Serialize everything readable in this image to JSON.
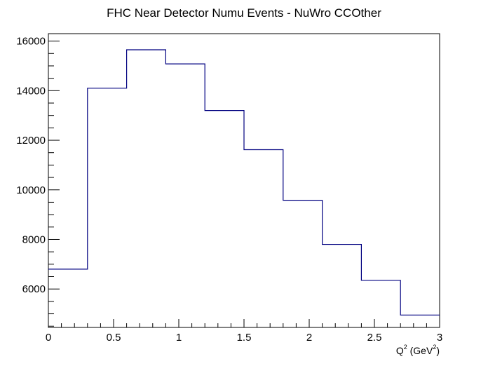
{
  "chart_data": {
    "type": "histogram",
    "title": "FHC Near Detector Numu Events - NuWro CCOther",
    "xlabel": {
      "base": "Q",
      "sup": "2",
      "unit_open": " (GeV",
      "unit_sup": "2",
      "unit_close": ")"
    },
    "ylabel": "",
    "xlim": [
      0,
      3
    ],
    "ylim": [
      4450,
      16300
    ],
    "x_ticks": [
      0,
      0.5,
      1,
      1.5,
      2,
      2.5,
      3
    ],
    "x_tick_labels": [
      "0",
      "0.5",
      "1",
      "1.5",
      "2",
      "2.5",
      "3"
    ],
    "y_ticks": [
      6000,
      8000,
      10000,
      12000,
      14000,
      16000
    ],
    "y_tick_labels": [
      "6000",
      "8000",
      "10000",
      "12000",
      "14000",
      "16000"
    ],
    "bin_edges": [
      0,
      0.3,
      0.6,
      0.9,
      1.2,
      1.5,
      1.8,
      2.1,
      2.4,
      2.7,
      3.0
    ],
    "values": [
      6800,
      14100,
      15650,
      15080,
      13200,
      11620,
      9580,
      7800,
      6350,
      4950
    ],
    "grid": false,
    "legend": "none",
    "line_color": "#000080"
  }
}
